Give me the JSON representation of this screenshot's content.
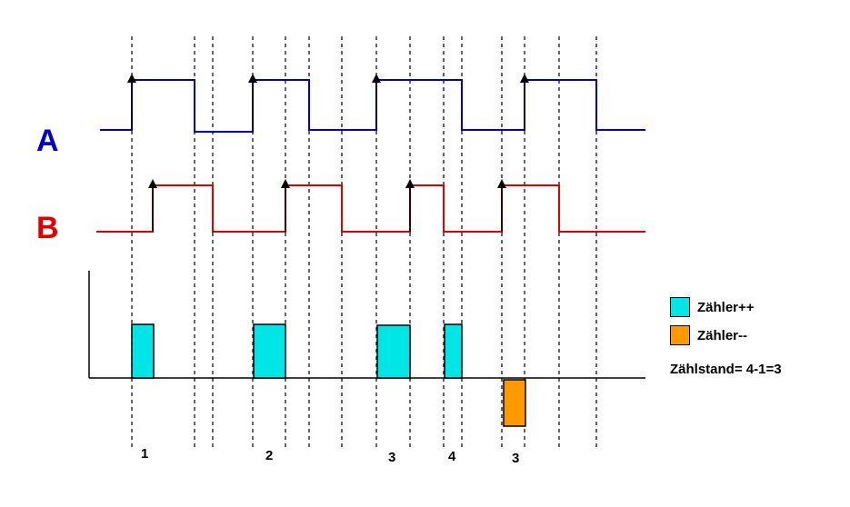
{
  "signals": {
    "a": {
      "label": "A",
      "color": "#0000cc"
    },
    "b": {
      "label": "B",
      "color": "#e00000"
    }
  },
  "pulses": {
    "increment_color": "#00e5e5",
    "decrement_color": "#ff9900"
  },
  "counts": [
    "1",
    "2",
    "3",
    "4",
    "3"
  ],
  "legend": {
    "increment": "Zähler++",
    "decrement": "Zähler--"
  },
  "summary": "Zählstand= 4-1=3"
}
